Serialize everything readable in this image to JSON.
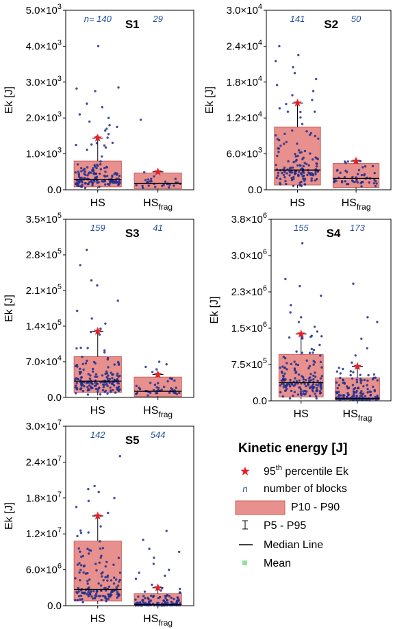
{
  "colors": {
    "box_fill": "#e8908d",
    "box_edge": "#c9605c",
    "point": "#1f2f8c",
    "star": "#e8202a",
    "n_text": "#1f4e9a",
    "mean": "#8ee39a"
  },
  "chart_data": [
    {
      "type": "box",
      "title": "S1",
      "ylabel": "Ek [J]",
      "mantissas": [
        "0.0",
        "1.0",
        "2.0",
        "3.0",
        "4.0",
        "5.0"
      ],
      "exp": "3",
      "ylim": [
        0,
        5000
      ],
      "categories": [
        {
          "main": "HS",
          "sub": ""
        },
        {
          "main": "HS",
          "sub": "frag"
        }
      ],
      "n_labels": [
        "n= 140",
        "29"
      ],
      "groups": [
        {
          "n": 140,
          "p10": 80,
          "p90": 800,
          "median": 290,
          "p5": 30,
          "p95": 1440,
          "star": 1440,
          "max": 4000,
          "outliers": [
            1450,
            1480,
            1550,
            1650,
            1700,
            1750,
            1800,
            1900,
            2000,
            2100,
            2300,
            2400,
            2750,
            2820,
            2850,
            4000
          ]
        },
        {
          "n": 29,
          "p10": 30,
          "p90": 470,
          "median": 180,
          "p5": 10,
          "p95": 500,
          "star": 500,
          "max": 1950,
          "outliers": [
            1950
          ]
        }
      ]
    },
    {
      "type": "box",
      "title": "S2",
      "ylabel": "Ek [J]",
      "mantissas": [
        "0.0",
        "6.0",
        "1.2",
        "1.8",
        "2.4",
        "3.0"
      ],
      "exps": [
        "",
        "3",
        "4",
        "4",
        "4",
        "4"
      ],
      "ylim": [
        0,
        30000
      ],
      "categories": [
        {
          "main": "HS",
          "sub": ""
        },
        {
          "main": "HS",
          "sub": "frag"
        }
      ],
      "n_labels": [
        "141",
        "50"
      ],
      "groups": [
        {
          "n": 141,
          "p10": 800,
          "p90": 10500,
          "median": 3300,
          "p5": 300,
          "p95": 14500,
          "star": 14500,
          "max": 24000,
          "outliers": [
            15000,
            15800,
            16500,
            17500,
            18500,
            19500,
            20500,
            21500,
            22500,
            24000
          ]
        },
        {
          "n": 50,
          "p10": 400,
          "p90": 4400,
          "median": 1900,
          "p5": 100,
          "p95": 4800,
          "star": 4800,
          "max": 4800,
          "outliers": []
        }
      ]
    },
    {
      "type": "box",
      "title": "S3",
      "ylabel": "Ek [J]",
      "mantissas": [
        "0.0",
        "7.0",
        "1.4",
        "2.1",
        "2.8",
        "3.5"
      ],
      "exps": [
        "",
        "4",
        "5",
        "5",
        "5",
        "5"
      ],
      "ylim": [
        0,
        350000
      ],
      "categories": [
        {
          "main": "HS",
          "sub": ""
        },
        {
          "main": "HS",
          "sub": "frag"
        }
      ],
      "n_labels": [
        "159",
        "41"
      ],
      "groups": [
        {
          "n": 159,
          "p10": 10000,
          "p90": 80000,
          "median": 32000,
          "p5": 4000,
          "p95": 130000,
          "star": 130000,
          "max": 290000,
          "outliers": [
            135000,
            145000,
            155000,
            170000,
            190000,
            220000,
            230000,
            260000,
            290000
          ]
        },
        {
          "n": 41,
          "p10": 2000,
          "p90": 40000,
          "median": 12000,
          "p5": 500,
          "p95": 45000,
          "star": 45000,
          "max": 70000,
          "outliers": [
            50000,
            55000,
            60000,
            65000,
            70000
          ]
        }
      ]
    },
    {
      "type": "box",
      "title": "S4",
      "ylabel": "Ek [J]",
      "mantissas": [
        "0.0",
        "7.5",
        "1.5",
        "2.3",
        "3.0",
        "3.8"
      ],
      "exps": [
        "",
        "5",
        "6",
        "6",
        "6",
        "6"
      ],
      "ylim": [
        0,
        3800000
      ],
      "categories": [
        {
          "main": "HS",
          "sub": ""
        },
        {
          "main": "HS",
          "sub": "frag"
        }
      ],
      "n_labels": [
        "155",
        "173"
      ],
      "groups": [
        {
          "n": 155,
          "p10": 80000,
          "p90": 970000,
          "median": 380000,
          "p5": 30000,
          "p95": 1400000,
          "star": 1400000,
          "max": 3300000,
          "outliers": [
            1450000,
            1550000,
            1650000,
            1750000,
            1850000,
            2000000,
            2200000,
            2400000,
            2550000,
            3300000
          ]
        },
        {
          "n": 173,
          "p10": 20000,
          "p90": 480000,
          "median": 50000,
          "p5": 5000,
          "p95": 720000,
          "star": 720000,
          "max": 2450000,
          "outliers": [
            800000,
            950000,
            1100000,
            1300000,
            1650000,
            1750000,
            2450000
          ]
        }
      ]
    },
    {
      "type": "box",
      "title": "S5",
      "ylabel": "Ek [J]",
      "mantissas": [
        "0.0",
        "6.0",
        "1.2",
        "1.8",
        "2.4",
        "3.0"
      ],
      "exps": [
        "",
        "6",
        "7",
        "7",
        "7",
        "7"
      ],
      "ylim": [
        0,
        30000000
      ],
      "categories": [
        {
          "main": "HS",
          "sub": ""
        },
        {
          "main": "HS",
          "sub": "frag"
        }
      ],
      "n_labels": [
        "142",
        "544"
      ],
      "groups": [
        {
          "n": 142,
          "p10": 800000,
          "p90": 10800000,
          "median": 2700000,
          "p5": 300000,
          "p95": 15000000,
          "star": 15000000,
          "max": 25000000,
          "outliers": [
            15500000,
            16500000,
            17500000,
            18000000,
            19000000,
            19500000,
            20000000,
            25000000
          ]
        },
        {
          "n": 544,
          "p10": 0,
          "p90": 2000000,
          "median": 150000,
          "p5": 0,
          "p95": 3000000,
          "star": 3000000,
          "max": 12500000,
          "outliers": [
            3500000,
            4500000,
            5000000,
            5500000,
            6000000,
            7000000,
            8000000,
            9000000,
            9500000,
            11000000,
            12500000
          ]
        }
      ]
    }
  ],
  "legend": {
    "title": "Kinetic energy [J]",
    "items": [
      {
        "kind": "star",
        "text": "95",
        "sup": "th",
        "rest": " percentile Ek"
      },
      {
        "kind": "n",
        "symbol": "n",
        "text": "number of blocks"
      },
      {
        "kind": "box",
        "text": "P10 - P90"
      },
      {
        "kind": "whisker",
        "text": "P5 - P95"
      },
      {
        "kind": "line",
        "text": "Median Line"
      },
      {
        "kind": "mean",
        "text": "Mean"
      }
    ]
  }
}
